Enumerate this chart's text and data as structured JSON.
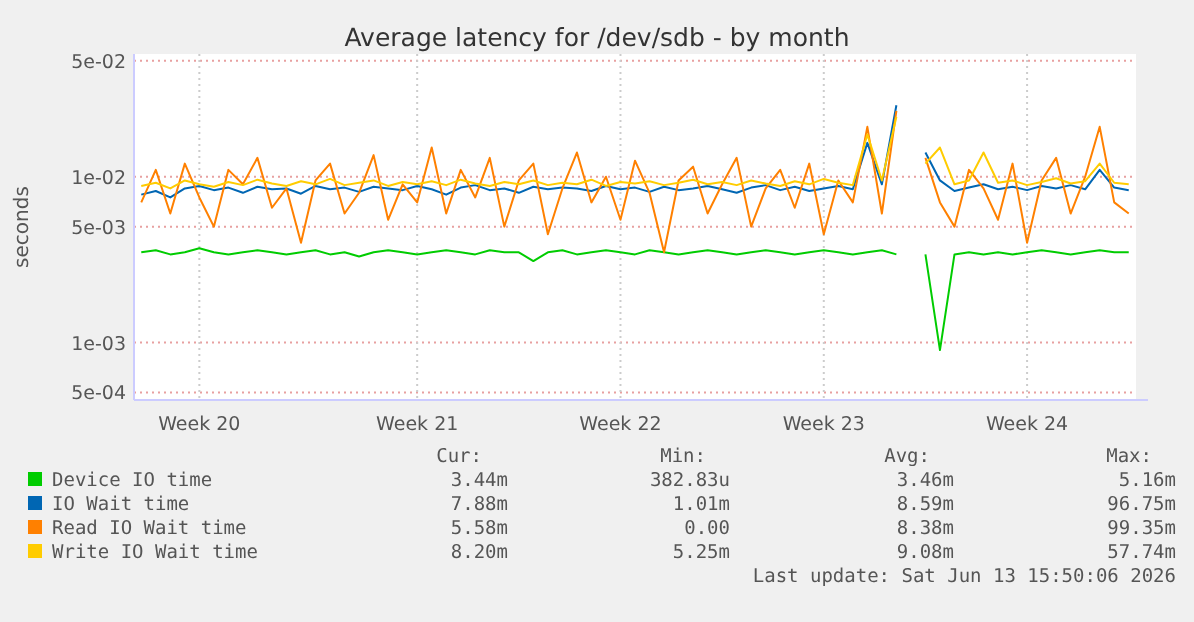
{
  "chart_data": {
    "type": "line",
    "title": "Average latency for /dev/sdb - by month",
    "ylabel": "seconds",
    "log": "y",
    "grid": true,
    "legend": "bottom",
    "marker": "none",
    "line_style": "solid",
    "ylim": [
      0.00045,
      0.055
    ],
    "yticks": [
      {
        "value": 0.0005,
        "label": "5e-04"
      },
      {
        "value": 0.001,
        "label": "1e-03"
      },
      {
        "value": 0.005,
        "label": "5e-03"
      },
      {
        "value": 0.01,
        "label": "1e-02"
      },
      {
        "value": 0.05,
        "label": "5e-02"
      }
    ],
    "categories": [
      null,
      null,
      null,
      null,
      "Week 20",
      null,
      null,
      null,
      null,
      null,
      null,
      null,
      null,
      null,
      null,
      null,
      null,
      null,
      null,
      "Week 21",
      null,
      null,
      null,
      null,
      null,
      null,
      null,
      null,
      null,
      null,
      null,
      null,
      null,
      "Week 22",
      null,
      null,
      null,
      null,
      null,
      null,
      null,
      null,
      null,
      null,
      null,
      null,
      null,
      "Week 23",
      null,
      null,
      null,
      null,
      null,
      null,
      null,
      null,
      null,
      null,
      null,
      null,
      null,
      "Week 24",
      null,
      null,
      null,
      null,
      null,
      null,
      null
    ],
    "series": [
      {
        "name": "Device IO time",
        "color": "#00cc00",
        "values": [
          0.0035,
          0.0036,
          0.0034,
          0.0035,
          0.0037,
          0.0035,
          0.0034,
          0.0035,
          0.0036,
          0.0035,
          0.0034,
          0.0035,
          0.0036,
          0.0034,
          0.0035,
          0.0033,
          0.0035,
          0.0036,
          0.0035,
          0.0034,
          0.0035,
          0.0036,
          0.0035,
          0.0034,
          0.0036,
          0.0035,
          0.0035,
          0.0031,
          0.0035,
          0.0036,
          0.0034,
          0.0035,
          0.0036,
          0.0035,
          0.0034,
          0.0036,
          0.0035,
          0.0034,
          0.0035,
          0.0036,
          0.0035,
          0.0034,
          0.0035,
          0.0036,
          0.0035,
          0.0034,
          0.0035,
          0.0036,
          0.0035,
          0.0034,
          0.0035,
          0.0036,
          0.0034,
          null,
          0.0034,
          0.0009,
          0.0034,
          0.0035,
          0.0034,
          0.0035,
          0.0034,
          0.0035,
          0.0036,
          0.0035,
          0.0034,
          0.0035,
          0.0036,
          0.0035,
          0.0035
        ]
      },
      {
        "name": "IO Wait time",
        "color": "#0066b3",
        "values": [
          0.0078,
          0.0082,
          0.0075,
          0.0085,
          0.0088,
          0.0083,
          0.0086,
          0.008,
          0.0087,
          0.0084,
          0.0085,
          0.0079,
          0.0088,
          0.0084,
          0.0086,
          0.0081,
          0.0087,
          0.0085,
          0.0083,
          0.0088,
          0.0084,
          0.0078,
          0.0086,
          0.0089,
          0.0083,
          0.0085,
          0.008,
          0.0087,
          0.0084,
          0.0086,
          0.0085,
          0.0082,
          0.0088,
          0.0084,
          0.0086,
          0.0081,
          0.0087,
          0.0083,
          0.0085,
          0.0088,
          0.0084,
          0.008,
          0.0086,
          0.0089,
          0.0083,
          0.0087,
          0.0082,
          0.0085,
          0.0088,
          0.0084,
          0.016,
          0.009,
          0.027,
          null,
          0.014,
          0.0095,
          0.0082,
          0.0086,
          0.009,
          0.0084,
          0.0087,
          0.0083,
          0.0088,
          0.0085,
          0.0089,
          0.0084,
          0.011,
          0.0086,
          0.0083
        ]
      },
      {
        "name": "Read IO Wait time",
        "color": "#ff8000",
        "values": [
          0.007,
          0.011,
          0.006,
          0.012,
          0.0075,
          0.005,
          0.011,
          0.009,
          0.013,
          0.0065,
          0.0085,
          0.004,
          0.0095,
          0.012,
          0.006,
          0.008,
          0.0135,
          0.0055,
          0.009,
          0.007,
          0.015,
          0.006,
          0.011,
          0.0075,
          0.013,
          0.005,
          0.0095,
          0.012,
          0.0045,
          0.0085,
          0.014,
          0.007,
          0.01,
          0.0055,
          0.0125,
          0.008,
          0.0035,
          0.0095,
          0.0115,
          0.006,
          0.009,
          0.013,
          0.005,
          0.0085,
          0.011,
          0.0065,
          0.012,
          0.0045,
          0.0095,
          0.007,
          0.02,
          0.006,
          0.025,
          null,
          0.013,
          0.007,
          0.005,
          0.011,
          0.0085,
          0.0055,
          0.012,
          0.004,
          0.0095,
          0.013,
          0.006,
          0.01,
          0.02,
          0.007,
          0.006
        ]
      },
      {
        "name": "Write IO Wait time",
        "color": "#ffcc00",
        "values": [
          0.0088,
          0.0092,
          0.0085,
          0.0095,
          0.009,
          0.0087,
          0.0093,
          0.0089,
          0.0096,
          0.0091,
          0.0088,
          0.0094,
          0.009,
          0.0097,
          0.0089,
          0.0092,
          0.0095,
          0.0088,
          0.0093,
          0.009,
          0.0094,
          0.0089,
          0.0096,
          0.0091,
          0.0088,
          0.0093,
          0.009,
          0.0095,
          0.0089,
          0.0092,
          0.009,
          0.0096,
          0.0088,
          0.0093,
          0.0091,
          0.0094,
          0.0089,
          0.0092,
          0.0096,
          0.009,
          0.0093,
          0.0089,
          0.0095,
          0.0091,
          0.0088,
          0.0094,
          0.009,
          0.0097,
          0.0092,
          0.0089,
          0.018,
          0.0095,
          0.023,
          null,
          0.012,
          0.015,
          0.009,
          0.0095,
          0.014,
          0.0092,
          0.0095,
          0.0089,
          0.0093,
          0.0098,
          0.0091,
          0.0094,
          0.012,
          0.0092,
          0.009
        ]
      }
    ],
    "annotations": [
      "Cur:",
      "Min:",
      "Avg:",
      "Max:",
      "3.44m",
      "382.83u",
      "3.46m",
      "5.16m",
      "7.88m",
      "1.01m",
      "8.59m",
      "96.75m",
      "5.58m",
      "0.00",
      "8.38m",
      "99.35m",
      "8.20m",
      "5.25m",
      "9.08m",
      "57.74m",
      "Last update: Sat Jun 13 15:50:06 2026"
    ]
  }
}
